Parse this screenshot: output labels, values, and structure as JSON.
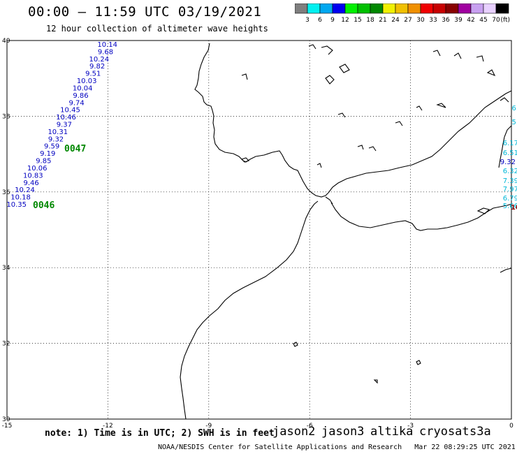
{
  "header": {
    "title": "00:00 – 11:59 UTC 03/19/2021",
    "subtitle": "12 hour collection of altimeter wave heights"
  },
  "legend": {
    "ticks": [
      "3",
      "6",
      "9",
      "12",
      "15",
      "18",
      "21",
      "24",
      "27",
      "30",
      "33",
      "36",
      "39",
      "42",
      "45",
      "70"
    ],
    "unit": "(ft)",
    "colors": [
      "#7f7f7f",
      "#00f0f0",
      "#00a8f0",
      "#0000f0",
      "#00f000",
      "#00c000",
      "#008800",
      "#f0f000",
      "#f0c000",
      "#f09000",
      "#f00000",
      "#c80000",
      "#880000",
      "#a000a0",
      "#c8a0f0",
      "#e8d0ff",
      "#000000"
    ]
  },
  "map": {
    "lat_labels": [
      "40",
      "38",
      "36",
      "34",
      "32",
      "30"
    ],
    "lon_labels": [
      "-15",
      "-12",
      "-9",
      "-6",
      "-3",
      "0"
    ],
    "extent": {
      "lon_min": -15,
      "lon_max": 0,
      "lat_min": 30,
      "lat_max": 40
    }
  },
  "tracks": {
    "blue_values": [
      "10.14",
      "9.68",
      "10.24",
      "9.82",
      "9.51",
      "10.03",
      "10.04",
      "9.86",
      "9.74",
      "10.45",
      "10.46",
      "9.37",
      "10.31",
      "9.32",
      "9.59",
      "9.19",
      "9.85",
      "10.06",
      "10.83",
      "9.46",
      "10.24",
      "10.18",
      "10.35"
    ],
    "pass_labels": [
      "0047",
      "0046"
    ],
    "right_blue": [
      "9.32"
    ],
    "right_cyan": [
      "6.",
      "5.",
      "6.17",
      "6.51",
      "6.32",
      "7.39",
      "7.97",
      "6.79",
      "5.66"
    ],
    "right_edge": "10"
  },
  "footer": {
    "note": "note: 1) Time is in UTC; 2) SWH is in feet",
    "satellites": [
      {
        "name": "jason2",
        "color": "#0000d0"
      },
      {
        "name": "jason3",
        "color": "#008800"
      },
      {
        "name": "altika",
        "color": "#f09000"
      },
      {
        "name": "cryosat",
        "color": "#d00000"
      },
      {
        "name": "s3a",
        "color": "#880000"
      }
    ],
    "credit": "NOAA/NESDIS Center for Satellite Applications and Research",
    "timestamp": "Mar 22 08:29:25 UTC 2021"
  }
}
